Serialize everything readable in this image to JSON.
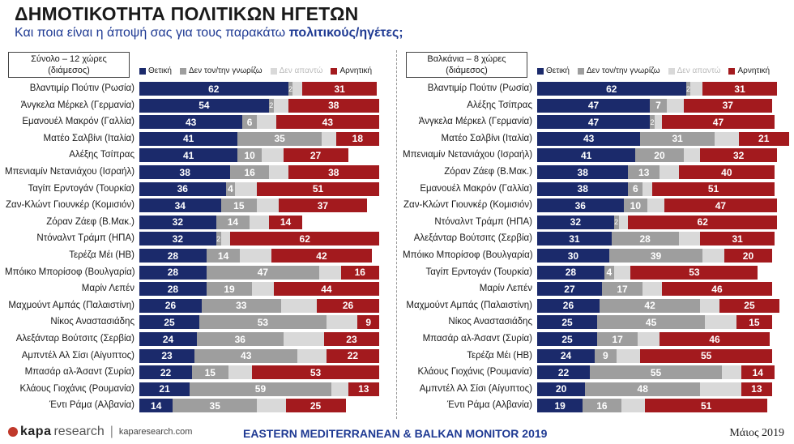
{
  "title": "ΔΗΜΟΤΙΚΟΤΗΤΑ ΠΟΛΙΤΙΚΩΝ ΗΓΕΤΩΝ",
  "subtitle_prefix": "Και ποια είναι η άποψή σας για τους παρακάτω ",
  "subtitle_bold": "πολιτικούς/ηγέτες;",
  "colors": {
    "positive": "#1b2a6b",
    "dont_know": "#9e9e9e",
    "no_answer": "#d9d9d9",
    "negative": "#a31a1e",
    "legend_no_answer_text": "#bbbbbb",
    "title_blue": "#1f3a93"
  },
  "legend": {
    "positive": "Θετική",
    "dont_know": "Δεν τον/την γνωρίζω",
    "no_answer": "Δεν απαντώ",
    "negative": "Αρνητική"
  },
  "chart_data": [
    {
      "type": "bar",
      "stacked": true,
      "orientation": "horizontal",
      "panel_label_line1": "Σύνολο – 12 χώρες",
      "panel_label_line2": "(διάμεσος)",
      "categories": [
        "Βλαντιμίρ Πούτιν (Ρωσία)",
        "Άνγκελα Μέρκελ (Γερμανία)",
        "Εμανουέλ Μακρόν (Γαλλία)",
        "Ματέο Σαλβίνι (Ιταλία)",
        "Αλέξης Τσίπρας",
        "Μπενιαμίν Νετανιάχου (Ισραήλ)",
        "Ταγίπ Ερντογάν (Τουρκία)",
        "Ζαν-Κλώντ Γιουνκέρ (Κομισιόν)",
        "Ζόραν Ζάεφ (Β.Μακ.)",
        "Ντόναλντ Τράμπ (ΗΠΑ)",
        "Τερέζα Μέι (ΗΒ)",
        "Μπόικο Μπορίσοφ (Βουλγαρία)",
        "Μαρίν Λεπέν",
        "Μαχμούντ Αμπάς (Παλαιστίνη)",
        "Νίκος Αναστασιάδης",
        "Αλεξάνταρ Βούτσιτς (Σερβία)",
        "Αμπντέλ Αλ Σίσι (Αίγυπτος)",
        "Μπασάρ αλ-Άσαντ (Συρία)",
        "Κλάους Γιοχάνις (Ρουμανία)",
        "Έντι Ράμα (Αλβανία)"
      ],
      "series": [
        {
          "name": "Θετική",
          "values": [
            62,
            54,
            43,
            41,
            41,
            38,
            36,
            34,
            32,
            32,
            28,
            28,
            28,
            26,
            25,
            24,
            23,
            22,
            21,
            14
          ]
        },
        {
          "name": "Δεν τον/την γνωρίζω",
          "values": [
            2,
            2,
            6,
            35,
            10,
            16,
            4,
            15,
            14,
            2,
            14,
            47,
            19,
            33,
            53,
            36,
            43,
            15,
            59,
            35
          ]
        },
        {
          "name": "Δεν απαντώ",
          "values": [
            4,
            6,
            8,
            6,
            9,
            8,
            9,
            9,
            8,
            4,
            13,
            9,
            9,
            15,
            13,
            17,
            12,
            10,
            7,
            12
          ]
        },
        {
          "name": "Αρνητική",
          "values": [
            31,
            38,
            43,
            18,
            27,
            38,
            51,
            37,
            14,
            62,
            42,
            16,
            44,
            26,
            9,
            23,
            22,
            53,
            13,
            25
          ]
        }
      ]
    },
    {
      "type": "bar",
      "stacked": true,
      "orientation": "horizontal",
      "panel_label_line1": "Βαλκάνια – 8 χώρες",
      "panel_label_line2": "(διάμεσος)",
      "categories": [
        "Βλαντιμίρ Πούτιν (Ρωσία)",
        "Αλέξης Τσίπρας",
        "Άνγκελα Μέρκελ (Γερμανία)",
        "Ματέο Σαλβίνι (Ιταλία)",
        "Μπενιαμίν Νετανιάχου (Ισραήλ)",
        "Ζόραν Ζάεφ (Β.Μακ.)",
        "Εμανουέλ Μακρόν (Γαλλία)",
        "Ζαν-Κλώντ Γιουνκέρ (Κομισιόν)",
        "Ντόναλντ Τράμπ (ΗΠΑ)",
        "Αλεξάνταρ Βούτσιτς (Σερβία)",
        "Μπόικο Μπορίσοφ (Βουλγαρία)",
        "Ταγίπ Ερντογάν (Τουρκία)",
        "Μαρίν Λεπέν",
        "Μαχμούντ Αμπάς (Παλαιστίνη)",
        "Νίκος Αναστασιάδης",
        "Μπασάρ αλ-Άσαντ (Συρία)",
        "Τερέζα Μέι (ΗΒ)",
        "Κλάους Γιοχάνις (Ρουμανία)",
        "Αμπντέλ Αλ Σίσι (Αίγυπτος)",
        "Έντι Ράμα (Αλβανία)"
      ],
      "series": [
        {
          "name": "Θετική",
          "values": [
            62,
            47,
            47,
            43,
            41,
            38,
            38,
            36,
            32,
            31,
            30,
            28,
            27,
            26,
            25,
            25,
            24,
            22,
            20,
            19
          ]
        },
        {
          "name": "Δεν τον/την γνωρίζω",
          "values": [
            2,
            7,
            2,
            31,
            20,
            13,
            6,
            10,
            2,
            28,
            39,
            4,
            17,
            42,
            45,
            17,
            9,
            55,
            48,
            16
          ]
        },
        {
          "name": "Δεν απαντώ",
          "values": [
            5,
            7,
            3,
            10,
            7,
            8,
            4,
            7,
            4,
            9,
            9,
            7,
            8,
            8,
            13,
            9,
            10,
            8,
            17,
            10
          ]
        },
        {
          "name": "Αρνητική",
          "values": [
            31,
            37,
            47,
            21,
            32,
            40,
            51,
            47,
            62,
            31,
            20,
            53,
            46,
            25,
            15,
            46,
            55,
            14,
            13,
            51
          ]
        }
      ]
    }
  ],
  "footer": {
    "logo_kapa": "kapa",
    "logo_research": "research",
    "url": "kaparesearch.com",
    "monitor": "EASTERN MEDITERRANEAN & BALKAN MONITOR 2019",
    "date": "Μάιος 2019"
  }
}
